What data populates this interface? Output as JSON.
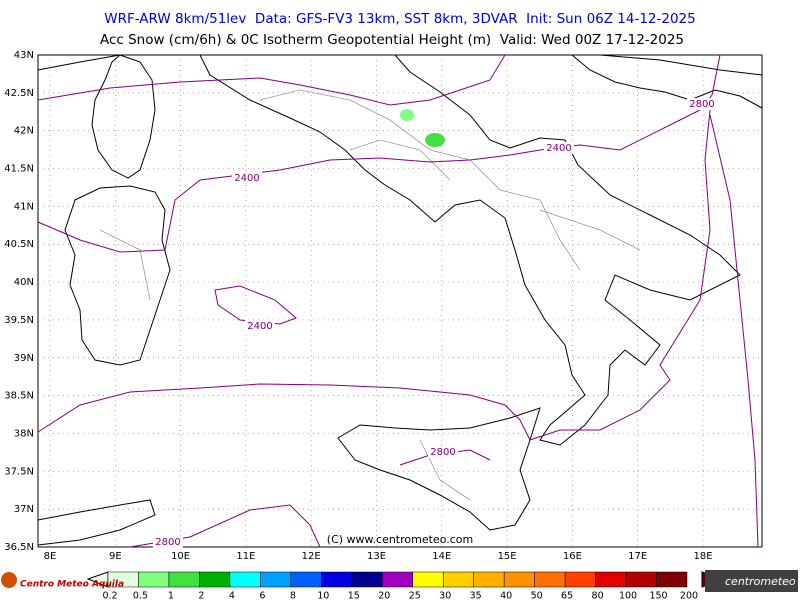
{
  "header": {
    "line1": "WRF-ARW 8km/51lev  Data: GFS-FV3 13km, SST 8km, 3DVAR  Init: Sun 06Z 14-12-2025",
    "line2": "Acc Snow (cm/6h) & 0C Isotherm Geopotential Height (m)  Valid: Wed 00Z 17-12-2025"
  },
  "map": {
    "lat_labels": [
      "43N",
      "42.5N",
      "42N",
      "41.5N",
      "41N",
      "40.5N",
      "40N",
      "39.5N",
      "39N",
      "38.5N",
      "38N",
      "37.5N",
      "37N",
      "36.5N"
    ],
    "lon_labels": [
      "8E",
      "9E",
      "10E",
      "11E",
      "12E",
      "13E",
      "14E",
      "15E",
      "16E",
      "17E",
      "18E"
    ],
    "contour_labels": [
      "2400",
      "2400",
      "2400",
      "2800",
      "2800",
      "2800"
    ],
    "copyright": "(C) www.centrometeo.com"
  },
  "legend": {
    "labels": [
      "0.2",
      "0.5",
      "1",
      "2",
      "4",
      "6",
      "8",
      "10",
      "15",
      "20",
      "25",
      "30",
      "35",
      "40",
      "50",
      "65",
      "80",
      "100",
      "150",
      "200"
    ],
    "colors": [
      "#e0ffe0",
      "#80ff80",
      "#40e040",
      "#00b000",
      "#00ffff",
      "#00a0ff",
      "#0060ff",
      "#0000e0",
      "#000090",
      "#a000c0",
      "#ffff00",
      "#ffd000",
      "#ffb000",
      "#ff9000",
      "#ff7000",
      "#ff4000",
      "#e00000",
      "#b00000",
      "#800000"
    ]
  },
  "logos": {
    "left": "Centro Meteo Aquila",
    "right": "centrometeo"
  }
}
